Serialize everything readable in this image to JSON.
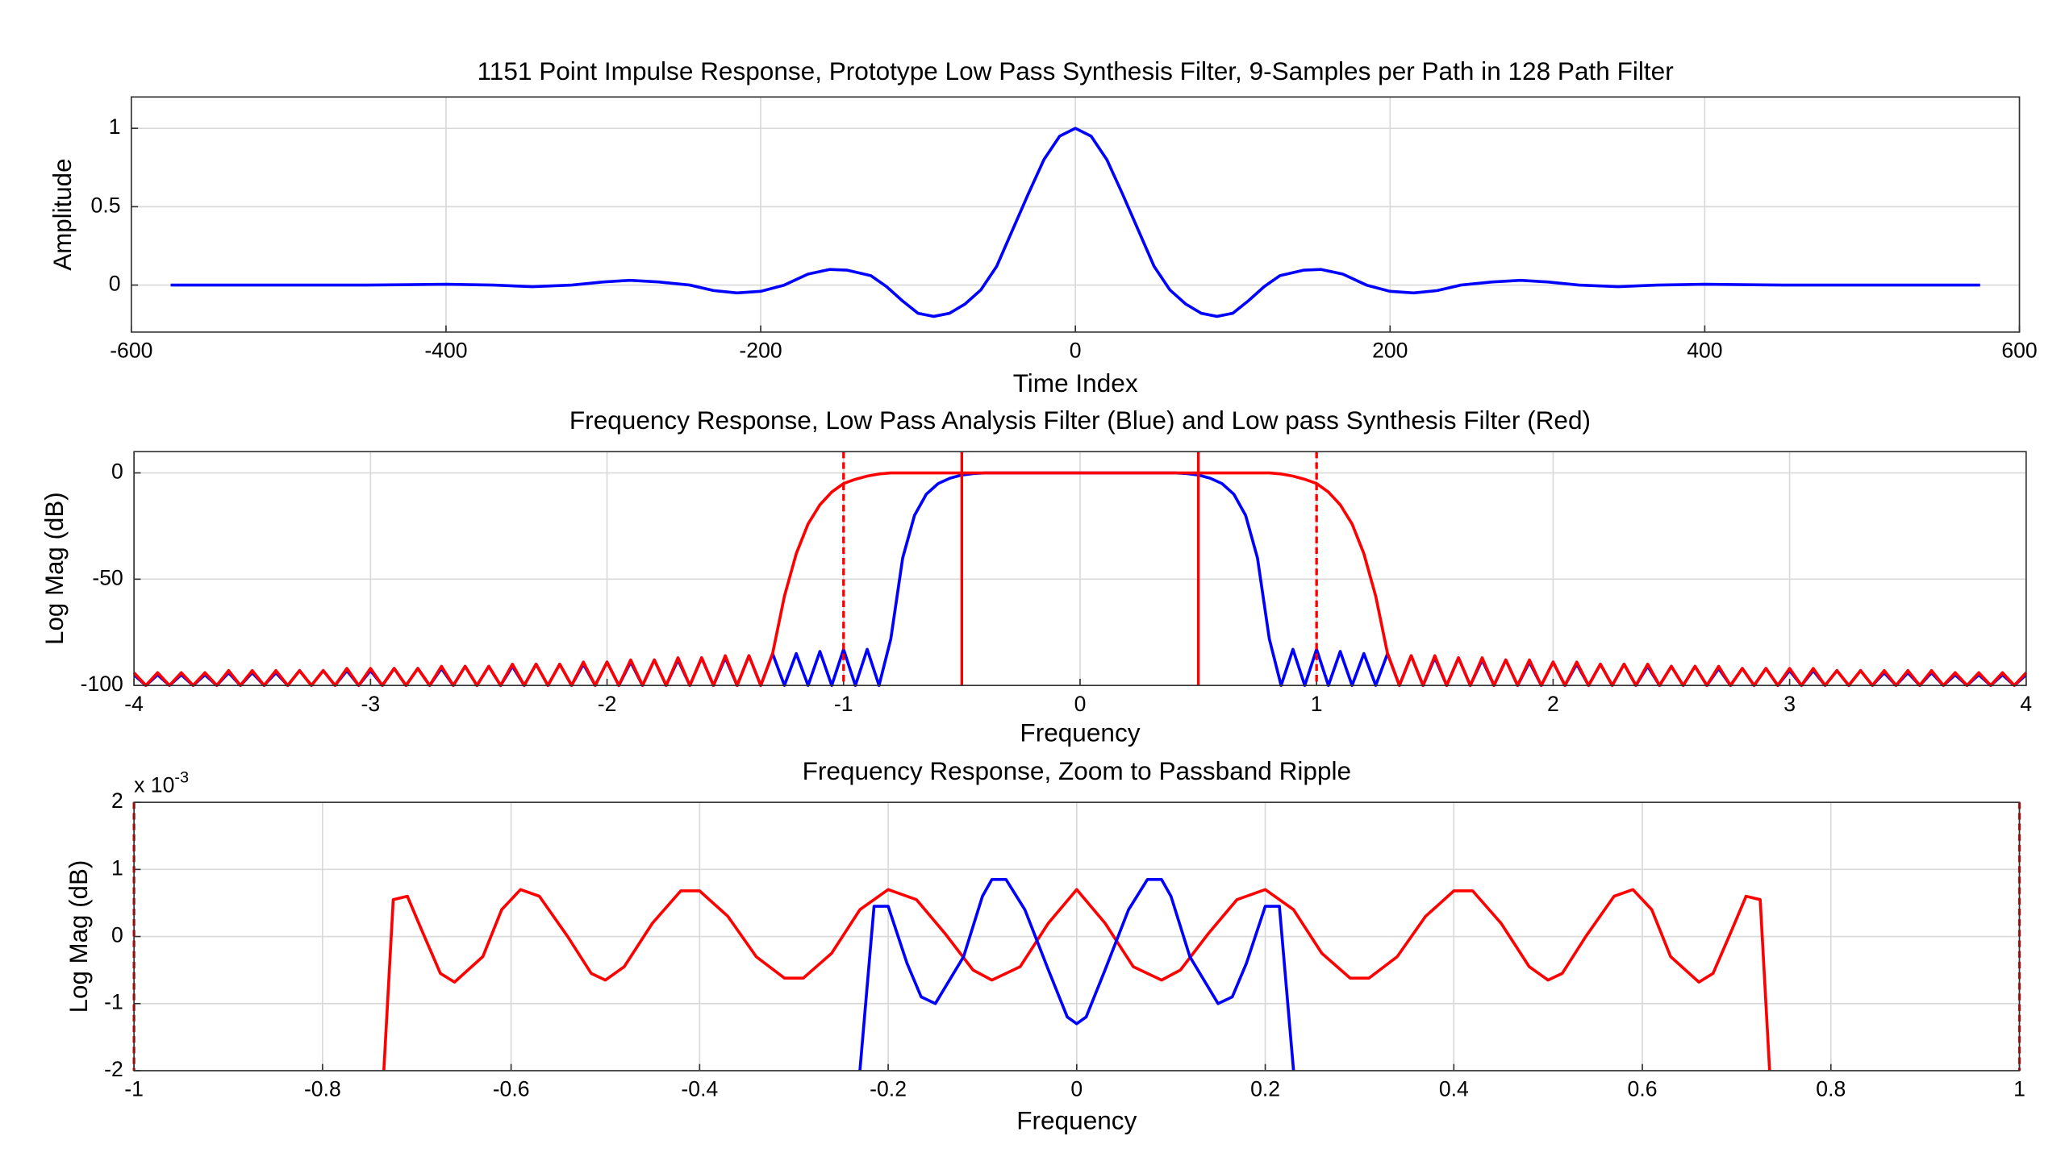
{
  "chart_data": [
    {
      "type": "line",
      "title": "1151 Point Impulse Response, Prototype Low Pass Synthesis Filter, 9-Samples per Path in 128 Path Filter",
      "xlabel": "Time Index",
      "ylabel": "Amplitude",
      "xlim": [
        -600,
        600
      ],
      "ylim": [
        -0.3,
        1.2
      ],
      "xticks": [
        -600,
        -400,
        -200,
        0,
        200,
        400,
        600
      ],
      "yticks": [
        0,
        0.5,
        1
      ],
      "grid": true,
      "x": [
        -575,
        -500,
        -450,
        -400,
        -370,
        -345,
        -320,
        -300,
        -283,
        -265,
        -245,
        -230,
        -215,
        -200,
        -185,
        -170,
        -156,
        -145,
        -130,
        -120,
        -110,
        -100,
        -90,
        -80,
        -70,
        -60,
        -50,
        -40,
        -30,
        -20,
        -10,
        0,
        10,
        20,
        30,
        40,
        50,
        60,
        70,
        80,
        90,
        100,
        110,
        120,
        130,
        145,
        156,
        170,
        185,
        200,
        215,
        230,
        245,
        265,
        283,
        300,
        320,
        345,
        370,
        400,
        450,
        500,
        575
      ],
      "series": [
        {
          "color": "#0000ff",
          "values": [
            0,
            0,
            0,
            0.005,
            0,
            -0.01,
            0,
            0.02,
            0.03,
            0.02,
            0,
            -0.035,
            -0.05,
            -0.04,
            0,
            0.07,
            0.1,
            0.095,
            0.06,
            -0.01,
            -0.1,
            -0.18,
            -0.2,
            -0.18,
            -0.12,
            -0.03,
            0.12,
            0.35,
            0.58,
            0.8,
            0.95,
            1,
            0.95,
            0.8,
            0.58,
            0.35,
            0.12,
            -0.03,
            -0.12,
            -0.18,
            -0.2,
            -0.18,
            -0.1,
            -0.01,
            0.06,
            0.095,
            0.1,
            0.07,
            0,
            -0.04,
            -0.05,
            -0.035,
            0,
            0.02,
            0.03,
            0.02,
            0,
            -0.01,
            0,
            0.005,
            0,
            0,
            0
          ]
        }
      ]
    },
    {
      "type": "line",
      "title": "Frequency Response, Low Pass Analysis Filter (Blue) and Low pass Synthesis Filter (Red)",
      "xlabel": "Frequency",
      "ylabel": "Log Mag (dB)",
      "xlim": [
        -4,
        4
      ],
      "ylim": [
        -100,
        10
      ],
      "xticks": [
        -4,
        -3,
        -2,
        -1,
        0,
        1,
        2,
        3,
        4
      ],
      "yticks": [
        -100,
        -50,
        0
      ],
      "grid": true,
      "x": [
        -4,
        -3.95,
        -3.9,
        -3.85,
        -3.8,
        -3.75,
        -3.7,
        -3.65,
        -3.6,
        -3.55,
        -3.5,
        -3.45,
        -3.4,
        -3.35,
        -3.3,
        -3.25,
        -3.2,
        -3.15,
        -3.1,
        -3.05,
        -3,
        -2.95,
        -2.9,
        -2.85,
        -2.8,
        -2.75,
        -2.7,
        -2.65,
        -2.6,
        -2.55,
        -2.5,
        -2.45,
        -2.4,
        -2.35,
        -2.3,
        -2.25,
        -2.2,
        -2.15,
        -2.1,
        -2.05,
        -2,
        -1.95,
        -1.9,
        -1.85,
        -1.8,
        -1.75,
        -1.7,
        -1.65,
        -1.6,
        -1.55,
        -1.5,
        -1.45,
        -1.4,
        -1.35,
        -1.3,
        -1.25,
        -1.2,
        -1.15,
        -1.1,
        -1.05,
        -1,
        -0.95,
        -0.9,
        -0.85,
        -0.8,
        -0.75,
        -0.7,
        -0.65,
        -0.6,
        -0.55,
        -0.5,
        -0.45,
        -0.4,
        -0.35,
        -0.3,
        -0.25,
        -0.2,
        -0.15,
        -0.1,
        -0.05,
        0,
        0.05,
        0.1,
        0.15,
        0.2,
        0.25,
        0.3,
        0.35,
        0.4,
        0.45,
        0.5,
        0.55,
        0.6,
        0.65,
        0.7,
        0.75,
        0.8,
        0.85,
        0.9,
        0.95,
        1,
        1.05,
        1.1,
        1.15,
        1.2,
        1.25,
        1.3,
        1.35,
        1.4,
        1.45,
        1.5,
        1.55,
        1.6,
        1.65,
        1.7,
        1.75,
        1.8,
        1.85,
        1.9,
        1.95,
        2,
        2.05,
        2.1,
        2.15,
        2.2,
        2.25,
        2.3,
        2.35,
        2.4,
        2.45,
        2.5,
        2.55,
        2.6,
        2.65,
        2.7,
        2.75,
        2.8,
        2.85,
        2.9,
        2.95,
        3,
        3.05,
        3.1,
        3.15,
        3.2,
        3.25,
        3.3,
        3.35,
        3.4,
        3.45,
        3.5,
        3.55,
        3.6,
        3.65,
        3.7,
        3.75,
        3.8,
        3.85,
        3.9,
        3.95,
        4
      ],
      "series": [
        {
          "color": "#0000ff",
          "values": [
            -95,
            -100,
            -95,
            -100,
            -95,
            -100,
            -95,
            -100,
            -94,
            -100,
            -94,
            -100,
            -94,
            -100,
            -93,
            -100,
            -93,
            -100,
            -93,
            -100,
            -93,
            -100,
            -92,
            -100,
            -92,
            -100,
            -92,
            -100,
            -91,
            -100,
            -91,
            -100,
            -91,
            -100,
            -90,
            -100,
            -90,
            -100,
            -90,
            -100,
            -89,
            -100,
            -89,
            -100,
            -88,
            -100,
            -88,
            -100,
            -87,
            -100,
            -87,
            -100,
            -86,
            -100,
            -85,
            -100,
            -85,
            -100,
            -84,
            -100,
            -83,
            -100,
            -83,
            -100,
            -78,
            -40,
            -20,
            -10,
            -5,
            -2.5,
            -1,
            -0.3,
            0,
            0,
            0,
            0,
            0,
            0,
            0,
            0,
            0,
            0,
            0,
            0,
            0,
            0,
            0,
            0,
            0,
            -0.3,
            -1,
            -2.5,
            -5,
            -10,
            -20,
            -40,
            -78,
            -100,
            -83,
            -100,
            -83,
            -100,
            -84,
            -100,
            -85,
            -100,
            -85,
            -100,
            -86,
            -100,
            -87,
            -100,
            -87,
            -100,
            -88,
            -100,
            -88,
            -100,
            -89,
            -100,
            -89,
            -100,
            -90,
            -100,
            -90,
            -100,
            -90,
            -100,
            -91,
            -100,
            -91,
            -100,
            -91,
            -100,
            -92,
            -100,
            -92,
            -100,
            -92,
            -100,
            -93,
            -100,
            -93,
            -100,
            -93,
            -100,
            -93,
            -100,
            -94,
            -100,
            -94,
            -100,
            -94,
            -100,
            -95,
            -100,
            -95,
            -100,
            -95,
            -100,
            -95
          ]
        },
        {
          "color": "#ff0000",
          "values": [
            -94,
            -100,
            -94,
            -100,
            -94,
            -100,
            -94,
            -100,
            -93,
            -100,
            -93,
            -100,
            -93,
            -100,
            -93,
            -100,
            -93,
            -100,
            -92,
            -100,
            -92,
            -100,
            -92,
            -100,
            -92,
            -100,
            -91,
            -100,
            -91,
            -100,
            -91,
            -100,
            -90,
            -100,
            -90,
            -100,
            -90,
            -100,
            -89,
            -100,
            -89,
            -100,
            -88,
            -100,
            -88,
            -100,
            -87,
            -100,
            -87,
            -100,
            -86,
            -100,
            -86,
            -100,
            -85,
            -58,
            -38,
            -24,
            -15,
            -9,
            -5,
            -3,
            -1.5,
            -0.5,
            0,
            0,
            0,
            0,
            0,
            0,
            0,
            0,
            0,
            0,
            0,
            0,
            0,
            0,
            0,
            0,
            0,
            0,
            0,
            0,
            0,
            0,
            0,
            0,
            0,
            0,
            0,
            0,
            0,
            0,
            0,
            0,
            0,
            -0.5,
            -1.5,
            -3,
            -5,
            -9,
            -15,
            -24,
            -38,
            -58,
            -85,
            -100,
            -86,
            -100,
            -86,
            -100,
            -87,
            -100,
            -87,
            -100,
            -88,
            -100,
            -88,
            -100,
            -89,
            -100,
            -89,
            -100,
            -90,
            -100,
            -90,
            -100,
            -90,
            -100,
            -91,
            -100,
            -91,
            -100,
            -91,
            -100,
            -92,
            -100,
            -92,
            -100,
            -92,
            -100,
            -92,
            -100,
            -93,
            -100,
            -93,
            -100,
            -93,
            -100,
            -93,
            -100,
            -93,
            -100,
            -94,
            -100,
            -94,
            -100,
            -94,
            -100,
            -94
          ]
        }
      ],
      "reference_lines": {
        "color": "#ff0000",
        "dashed": [
          -1,
          1
        ],
        "solid": [
          -0.5,
          0.5
        ]
      }
    },
    {
      "type": "line",
      "title": "Frequency Response, Zoom to Passband Ripple",
      "xlabel": "Frequency",
      "ylabel": "Log Mag (dB)",
      "y_exponent": {
        "base": "x 10",
        "power": "-3"
      },
      "xlim": [
        -1,
        1
      ],
      "ylim": [
        -2,
        2
      ],
      "xticks": [
        -1,
        -0.8,
        -0.6,
        -0.4,
        -0.2,
        0,
        0.2,
        0.4,
        0.6,
        0.8,
        1
      ],
      "yticks": [
        -2,
        -1,
        0,
        1,
        2
      ],
      "grid": true,
      "series": [
        {
          "color": "#ff0000",
          "x": [
            -0.735,
            -0.725,
            -0.71,
            -0.695,
            -0.675,
            -0.66,
            -0.63,
            -0.61,
            -0.59,
            -0.57,
            -0.54,
            -0.515,
            -0.5,
            -0.48,
            -0.45,
            -0.42,
            -0.4,
            -0.37,
            -0.34,
            -0.31,
            -0.29,
            -0.26,
            -0.23,
            -0.2,
            -0.17,
            -0.14,
            -0.11,
            -0.09,
            -0.06,
            -0.03,
            0,
            0.03,
            0.06,
            0.09,
            0.11,
            0.14,
            0.17,
            0.2,
            0.23,
            0.26,
            0.29,
            0.31,
            0.34,
            0.37,
            0.4,
            0.42,
            0.45,
            0.48,
            0.5,
            0.515,
            0.54,
            0.57,
            0.59,
            0.61,
            0.63,
            0.66,
            0.675,
            0.695,
            0.71,
            0.725,
            0.735
          ],
          "values": [
            -2,
            0.55,
            0.6,
            0.1,
            -0.55,
            -0.68,
            -0.3,
            0.4,
            0.7,
            0.6,
            0,
            -0.55,
            -0.65,
            -0.45,
            0.2,
            0.68,
            0.68,
            0.3,
            -0.3,
            -0.62,
            -0.62,
            -0.25,
            0.4,
            0.7,
            0.55,
            0.05,
            -0.5,
            -0.65,
            -0.45,
            0.2,
            0.7,
            0.2,
            -0.45,
            -0.65,
            -0.5,
            0.05,
            0.55,
            0.7,
            0.4,
            -0.25,
            -0.62,
            -0.62,
            -0.3,
            0.3,
            0.68,
            0.68,
            0.2,
            -0.45,
            -0.65,
            -0.55,
            0,
            0.6,
            0.7,
            0.4,
            -0.3,
            -0.68,
            -0.55,
            0.1,
            0.6,
            0.55,
            -2
          ]
        },
        {
          "color": "#0000ff",
          "x": [
            -0.23,
            -0.215,
            -0.2,
            -0.18,
            -0.165,
            -0.15,
            -0.12,
            -0.1,
            -0.09,
            -0.075,
            -0.055,
            -0.03,
            -0.01,
            0,
            0.01,
            0.03,
            0.055,
            0.075,
            0.09,
            0.1,
            0.12,
            0.15,
            0.165,
            0.18,
            0.2,
            0.215,
            0.23
          ],
          "values": [
            -2,
            0.45,
            0.45,
            -0.4,
            -0.9,
            -1,
            -0.3,
            0.6,
            0.85,
            0.85,
            0.4,
            -0.5,
            -1.2,
            -1.3,
            -1.2,
            -0.5,
            0.4,
            0.85,
            0.85,
            0.6,
            -0.3,
            -1,
            -0.9,
            -0.4,
            0.45,
            0.45,
            -2
          ]
        }
      ],
      "reference_lines": {
        "color": "#ff0000",
        "dashed": [
          -1,
          1
        ]
      }
    }
  ]
}
